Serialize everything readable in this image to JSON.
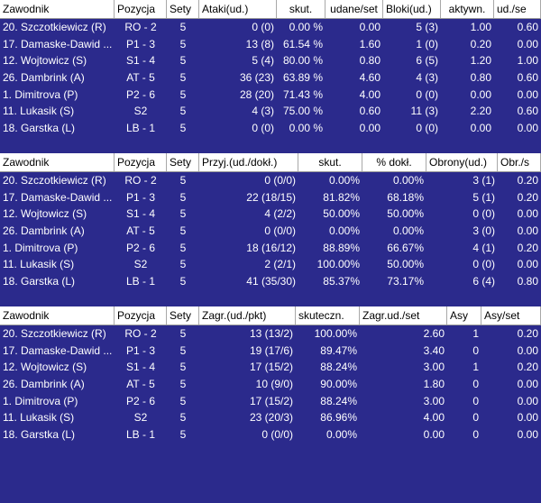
{
  "table1": {
    "headers": [
      "Zawodnik",
      "Pozycja",
      "Sety",
      "Ataki(ud.)",
      "skut.",
      "udane/set",
      "Bloki(ud.)",
      "aktywn.",
      "ud./se"
    ],
    "rows": [
      [
        "20. Szczotkiewicz (R)",
        "RO - 2",
        "5",
        "0 (0)",
        "0.00 %",
        "0.00",
        "5 (3)",
        "1.00",
        "0.60"
      ],
      [
        "17. Damaske-Dawid ...",
        "P1 - 3",
        "5",
        "13 (8)",
        "61.54 %",
        "1.60",
        "1 (0)",
        "0.20",
        "0.00"
      ],
      [
        "12. Wojtowicz (S)",
        "S1 - 4",
        "5",
        "5 (4)",
        "80.00 %",
        "0.80",
        "6 (5)",
        "1.20",
        "1.00"
      ],
      [
        "26. Dambrink (A)",
        "AT - 5",
        "5",
        "36 (23)",
        "63.89 %",
        "4.60",
        "4 (3)",
        "0.80",
        "0.60"
      ],
      [
        "1. Dimitrova (P)",
        "P2 - 6",
        "5",
        "28 (20)",
        "71.43 %",
        "4.00",
        "0 (0)",
        "0.00",
        "0.00"
      ],
      [
        "11. Lukasik (S)",
        "S2",
        "5",
        "4 (3)",
        "75.00 %",
        "0.60",
        "11 (3)",
        "2.20",
        "0.60"
      ],
      [
        "18. Garstka (L)",
        "LB - 1",
        "5",
        "0 (0)",
        "0.00 %",
        "0.00",
        "0 (0)",
        "0.00",
        "0.00"
      ]
    ]
  },
  "table2": {
    "headers": [
      "Zawodnik",
      "Pozycja",
      "Sety",
      "Przyj.(ud./dokł.)",
      "skut.",
      "% dokł.",
      "Obrony(ud.)",
      "Obr./s"
    ],
    "rows": [
      [
        "20. Szczotkiewicz (R)",
        "RO - 2",
        "5",
        "0 (0/0)",
        "0.00%",
        "0.00%",
        "3 (1)",
        "0.20"
      ],
      [
        "17. Damaske-Dawid ...",
        "P1 - 3",
        "5",
        "22 (18/15)",
        "81.82%",
        "68.18%",
        "5 (1)",
        "0.20"
      ],
      [
        "12. Wojtowicz (S)",
        "S1 - 4",
        "5",
        "4 (2/2)",
        "50.00%",
        "50.00%",
        "0 (0)",
        "0.00"
      ],
      [
        "26. Dambrink (A)",
        "AT - 5",
        "5",
        "0 (0/0)",
        "0.00%",
        "0.00%",
        "3 (0)",
        "0.00"
      ],
      [
        "1. Dimitrova (P)",
        "P2 - 6",
        "5",
        "18 (16/12)",
        "88.89%",
        "66.67%",
        "4 (1)",
        "0.20"
      ],
      [
        "11. Lukasik (S)",
        "S2",
        "5",
        "2 (2/1)",
        "100.00%",
        "50.00%",
        "0 (0)",
        "0.00"
      ],
      [
        "18. Garstka (L)",
        "LB - 1",
        "5",
        "41 (35/30)",
        "85.37%",
        "73.17%",
        "6 (4)",
        "0.80"
      ]
    ]
  },
  "table3": {
    "headers": [
      "Zawodnik",
      "Pozycja",
      "Sety",
      "Zagr.(ud./pkt)",
      "skuteczn.",
      "Zagr.ud./set",
      "Asy",
      "Asy/set"
    ],
    "rows": [
      [
        "20. Szczotkiewicz (R)",
        "RO - 2",
        "5",
        "13 (13/2)",
        "100.00%",
        "2.60",
        "1",
        "0.20"
      ],
      [
        "17. Damaske-Dawid ...",
        "P1 - 3",
        "5",
        "19 (17/6)",
        "89.47%",
        "3.40",
        "0",
        "0.00"
      ],
      [
        "12. Wojtowicz (S)",
        "S1 - 4",
        "5",
        "17 (15/2)",
        "88.24%",
        "3.00",
        "1",
        "0.20"
      ],
      [
        "26. Dambrink (A)",
        "AT - 5",
        "5",
        "10 (9/0)",
        "90.00%",
        "1.80",
        "0",
        "0.00"
      ],
      [
        "1. Dimitrova (P)",
        "P2 - 6",
        "5",
        "17 (15/2)",
        "88.24%",
        "3.00",
        "0",
        "0.00"
      ],
      [
        "11. Lukasik (S)",
        "S2",
        "5",
        "23 (20/3)",
        "86.96%",
        "4.00",
        "0",
        "0.00"
      ],
      [
        "18. Garstka (L)",
        "LB - 1",
        "5",
        "0 (0/0)",
        "0.00%",
        "0.00",
        "0",
        "0.00"
      ]
    ]
  }
}
